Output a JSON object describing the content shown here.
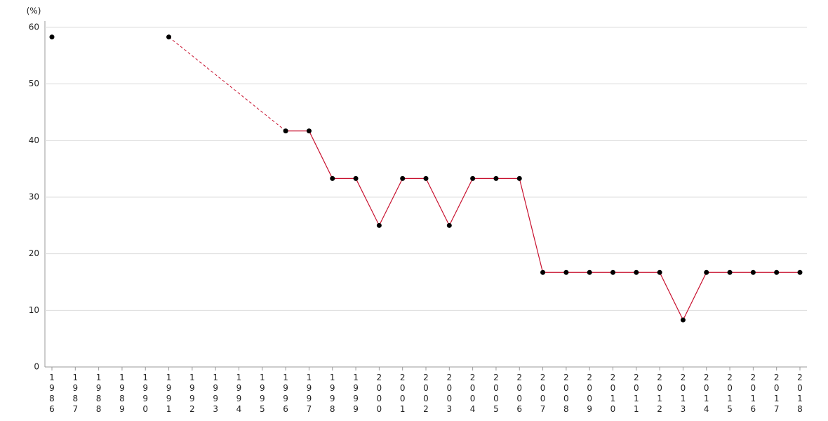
{
  "chart_data": {
    "type": "line",
    "y_unit_label": "(%)",
    "x": [
      1986,
      1987,
      1988,
      1989,
      1990,
      1991,
      1992,
      1993,
      1994,
      1995,
      1996,
      1997,
      1998,
      1999,
      2000,
      2001,
      2002,
      2003,
      2004,
      2005,
      2006,
      2007,
      2008,
      2009,
      2010,
      2011,
      2012,
      2013,
      2014,
      2015,
      2016,
      2017,
      2018
    ],
    "series": [
      {
        "color": "#c8102e",
        "marker_color": "#000000",
        "values": [
          58.3,
          null,
          null,
          null,
          null,
          58.3,
          null,
          null,
          null,
          null,
          41.7,
          41.7,
          33.3,
          33.3,
          25,
          33.3,
          33.3,
          25,
          33.3,
          33.3,
          33.3,
          16.7,
          16.7,
          16.7,
          16.7,
          16.7,
          16.7,
          8.3,
          16.7,
          16.7,
          16.7,
          16.7,
          16.7
        ]
      }
    ],
    "xlim": [
      1986,
      2018
    ],
    "ylim": [
      0,
      60
    ],
    "yticks": [
      0,
      10,
      20,
      30,
      40,
      50,
      60
    ],
    "grid": true
  }
}
